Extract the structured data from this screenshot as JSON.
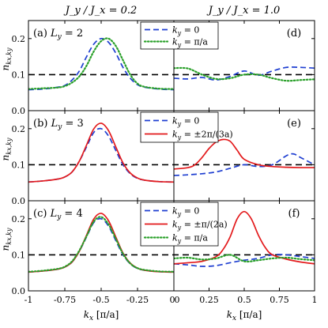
{
  "header": {
    "left": "J_y / J_x = 0.2",
    "right": "J_y / J_x = 1.0"
  },
  "chart_data": {
    "type": "line",
    "xlabel": "k_x [π/a]",
    "ylabel": "n_{kx,ky}",
    "left_xlim": [
      -1,
      0
    ],
    "right_xlim": [
      0,
      1
    ],
    "ylim": [
      0,
      0.25
    ],
    "yticks": [
      "0.0",
      "0.1",
      "0.2"
    ],
    "left_xticks": [
      "-1",
      "-0.75",
      "-0.5",
      "-0.25",
      "0"
    ],
    "right_xticks": [
      "0",
      "0.25",
      "0.5",
      "0.75",
      "1"
    ],
    "reference_line": {
      "y": 0.1,
      "style": "dashed",
      "color": "#000000"
    },
    "rows": [
      {
        "row_label": "L_y = 2",
        "panel_left": "(a)",
        "panel_right": "(d)",
        "legend": [
          "k_y = 0",
          "k_y = π/a"
        ],
        "series": [
          {
            "name": "k_y = 0",
            "color": "#1f3fd1",
            "style": "dashed",
            "left": {
              "x": [
                -1,
                -0.9,
                -0.8,
                -0.75,
                -0.7,
                -0.65,
                -0.6,
                -0.55,
                -0.5,
                -0.45,
                -0.4,
                -0.35,
                -0.3,
                -0.25,
                -0.2,
                -0.1,
                0
              ],
              "y": [
                0.058,
                0.06,
                0.065,
                0.07,
                0.085,
                0.11,
                0.15,
                0.185,
                0.2,
                0.19,
                0.16,
                0.12,
                0.09,
                0.072,
                0.065,
                0.06,
                0.058
              ]
            },
            "right": {
              "x": [
                0,
                0.1,
                0.2,
                0.3,
                0.4,
                0.5,
                0.6,
                0.7,
                0.8,
                0.9,
                1
              ],
              "y": [
                0.09,
                0.088,
                0.092,
                0.085,
                0.095,
                0.11,
                0.098,
                0.11,
                0.12,
                0.12,
                0.118
              ]
            }
          },
          {
            "name": "k_y = π/a",
            "color": "#2aa02a",
            "style": "dotted",
            "left": {
              "x": [
                -1,
                -0.9,
                -0.8,
                -0.75,
                -0.7,
                -0.65,
                -0.6,
                -0.55,
                -0.5,
                -0.45,
                -0.4,
                -0.35,
                -0.3,
                -0.25,
                -0.2,
                -0.1,
                0
              ],
              "y": [
                0.06,
                0.062,
                0.064,
                0.068,
                0.078,
                0.095,
                0.125,
                0.165,
                0.193,
                0.2,
                0.18,
                0.14,
                0.1,
                0.075,
                0.066,
                0.061,
                0.06
              ]
            },
            "right": {
              "x": [
                0,
                0.1,
                0.2,
                0.3,
                0.4,
                0.5,
                0.6,
                0.7,
                0.8,
                0.9,
                1
              ],
              "y": [
                0.118,
                0.117,
                0.1,
                0.088,
                0.09,
                0.1,
                0.1,
                0.09,
                0.083,
                0.085,
                0.087
              ]
            }
          }
        ]
      },
      {
        "row_label": "L_y = 3",
        "panel_left": "(b)",
        "panel_right": "(e)",
        "legend": [
          "k_y = 0",
          "k_y = ±2π/(3a)"
        ],
        "series": [
          {
            "name": "k_y = 0",
            "color": "#1f3fd1",
            "style": "dashed",
            "left": {
              "x": [
                -1,
                -0.9,
                -0.8,
                -0.75,
                -0.7,
                -0.65,
                -0.6,
                -0.55,
                -0.5,
                -0.45,
                -0.4,
                -0.35,
                -0.3,
                -0.25,
                -0.2,
                -0.1,
                0
              ],
              "y": [
                0.052,
                0.055,
                0.06,
                0.066,
                0.08,
                0.11,
                0.15,
                0.19,
                0.2,
                0.18,
                0.14,
                0.1,
                0.075,
                0.062,
                0.057,
                0.053,
                0.052
              ]
            },
            "right": {
              "x": [
                0,
                0.1,
                0.2,
                0.3,
                0.4,
                0.5,
                0.6,
                0.7,
                0.8,
                0.85,
                0.9,
                1
              ],
              "y": [
                0.07,
                0.072,
                0.075,
                0.08,
                0.09,
                0.1,
                0.095,
                0.1,
                0.125,
                0.13,
                0.12,
                0.1
              ]
            }
          },
          {
            "name": "k_y = ±2π/(3a)",
            "color": "#e31a1c",
            "style": "solid",
            "left": {
              "x": [
                -1,
                -0.9,
                -0.8,
                -0.75,
                -0.7,
                -0.65,
                -0.6,
                -0.55,
                -0.5,
                -0.45,
                -0.4,
                -0.35,
                -0.3,
                -0.25,
                -0.2,
                -0.1,
                0
              ],
              "y": [
                0.052,
                0.055,
                0.06,
                0.066,
                0.08,
                0.11,
                0.155,
                0.2,
                0.215,
                0.195,
                0.15,
                0.105,
                0.077,
                0.063,
                0.057,
                0.053,
                0.052
              ]
            },
            "right": {
              "x": [
                0,
                0.1,
                0.15,
                0.2,
                0.25,
                0.3,
                0.35,
                0.4,
                0.45,
                0.5,
                0.6,
                0.7,
                0.8,
                0.9,
                1
              ],
              "y": [
                0.088,
                0.092,
                0.1,
                0.12,
                0.145,
                0.163,
                0.17,
                0.165,
                0.14,
                0.115,
                0.1,
                0.095,
                0.093,
                0.092,
                0.092
              ]
            }
          }
        ]
      },
      {
        "row_label": "L_y = 4",
        "panel_left": "(c)",
        "panel_right": "(f)",
        "legend": [
          "k_y = 0",
          "k_y = ±π/(2a)",
          "k_y = π/a"
        ],
        "series": [
          {
            "name": "k_y = 0",
            "color": "#1f3fd1",
            "style": "dashed",
            "left": {
              "x": [
                -1,
                -0.9,
                -0.8,
                -0.75,
                -0.7,
                -0.65,
                -0.6,
                -0.55,
                -0.5,
                -0.45,
                -0.4,
                -0.35,
                -0.3,
                -0.25,
                -0.2,
                -0.1,
                0
              ],
              "y": [
                0.052,
                0.055,
                0.06,
                0.066,
                0.08,
                0.11,
                0.15,
                0.19,
                0.2,
                0.18,
                0.14,
                0.1,
                0.075,
                0.062,
                0.057,
                0.053,
                0.052
              ]
            },
            "right": {
              "x": [
                0,
                0.1,
                0.2,
                0.3,
                0.4,
                0.5,
                0.6,
                0.7,
                0.8,
                0.9,
                1
              ],
              "y": [
                0.075,
                0.072,
                0.068,
                0.07,
                0.078,
                0.085,
                0.09,
                0.1,
                0.1,
                0.095,
                0.09
              ]
            }
          },
          {
            "name": "k_y = ±π/(2a)",
            "color": "#e31a1c",
            "style": "solid",
            "left": {
              "x": [
                -1,
                -0.9,
                -0.8,
                -0.75,
                -0.7,
                -0.65,
                -0.6,
                -0.55,
                -0.5,
                -0.45,
                -0.4,
                -0.35,
                -0.3,
                -0.25,
                -0.2,
                -0.1,
                0
              ],
              "y": [
                0.052,
                0.055,
                0.06,
                0.066,
                0.08,
                0.11,
                0.155,
                0.2,
                0.215,
                0.195,
                0.15,
                0.105,
                0.077,
                0.063,
                0.057,
                0.053,
                0.052
              ]
            },
            "right": {
              "x": [
                0,
                0.1,
                0.2,
                0.3,
                0.35,
                0.4,
                0.45,
                0.5,
                0.55,
                0.6,
                0.65,
                0.7,
                0.8,
                0.9,
                1
              ],
              "y": [
                0.075,
                0.078,
                0.082,
                0.095,
                0.115,
                0.15,
                0.2,
                0.22,
                0.2,
                0.155,
                0.12,
                0.1,
                0.088,
                0.08,
                0.075
              ]
            }
          },
          {
            "name": "k_y = π/a",
            "color": "#2aa02a",
            "style": "dotted",
            "left": {
              "x": [
                -1,
                -0.9,
                -0.8,
                -0.75,
                -0.7,
                -0.65,
                -0.6,
                -0.55,
                -0.5,
                -0.45,
                -0.4,
                -0.35,
                -0.3,
                -0.25,
                -0.2,
                -0.1,
                0
              ],
              "y": [
                0.053,
                0.056,
                0.061,
                0.067,
                0.082,
                0.112,
                0.152,
                0.193,
                0.205,
                0.185,
                0.145,
                0.103,
                0.076,
                0.063,
                0.058,
                0.054,
                0.053
              ]
            },
            "right": {
              "x": [
                0,
                0.1,
                0.2,
                0.3,
                0.4,
                0.5,
                0.6,
                0.7,
                0.8,
                0.9,
                1
              ],
              "y": [
                0.09,
                0.092,
                0.087,
                0.09,
                0.1,
                0.082,
                0.085,
                0.09,
                0.092,
                0.088,
                0.085
              ]
            }
          }
        ]
      }
    ]
  }
}
